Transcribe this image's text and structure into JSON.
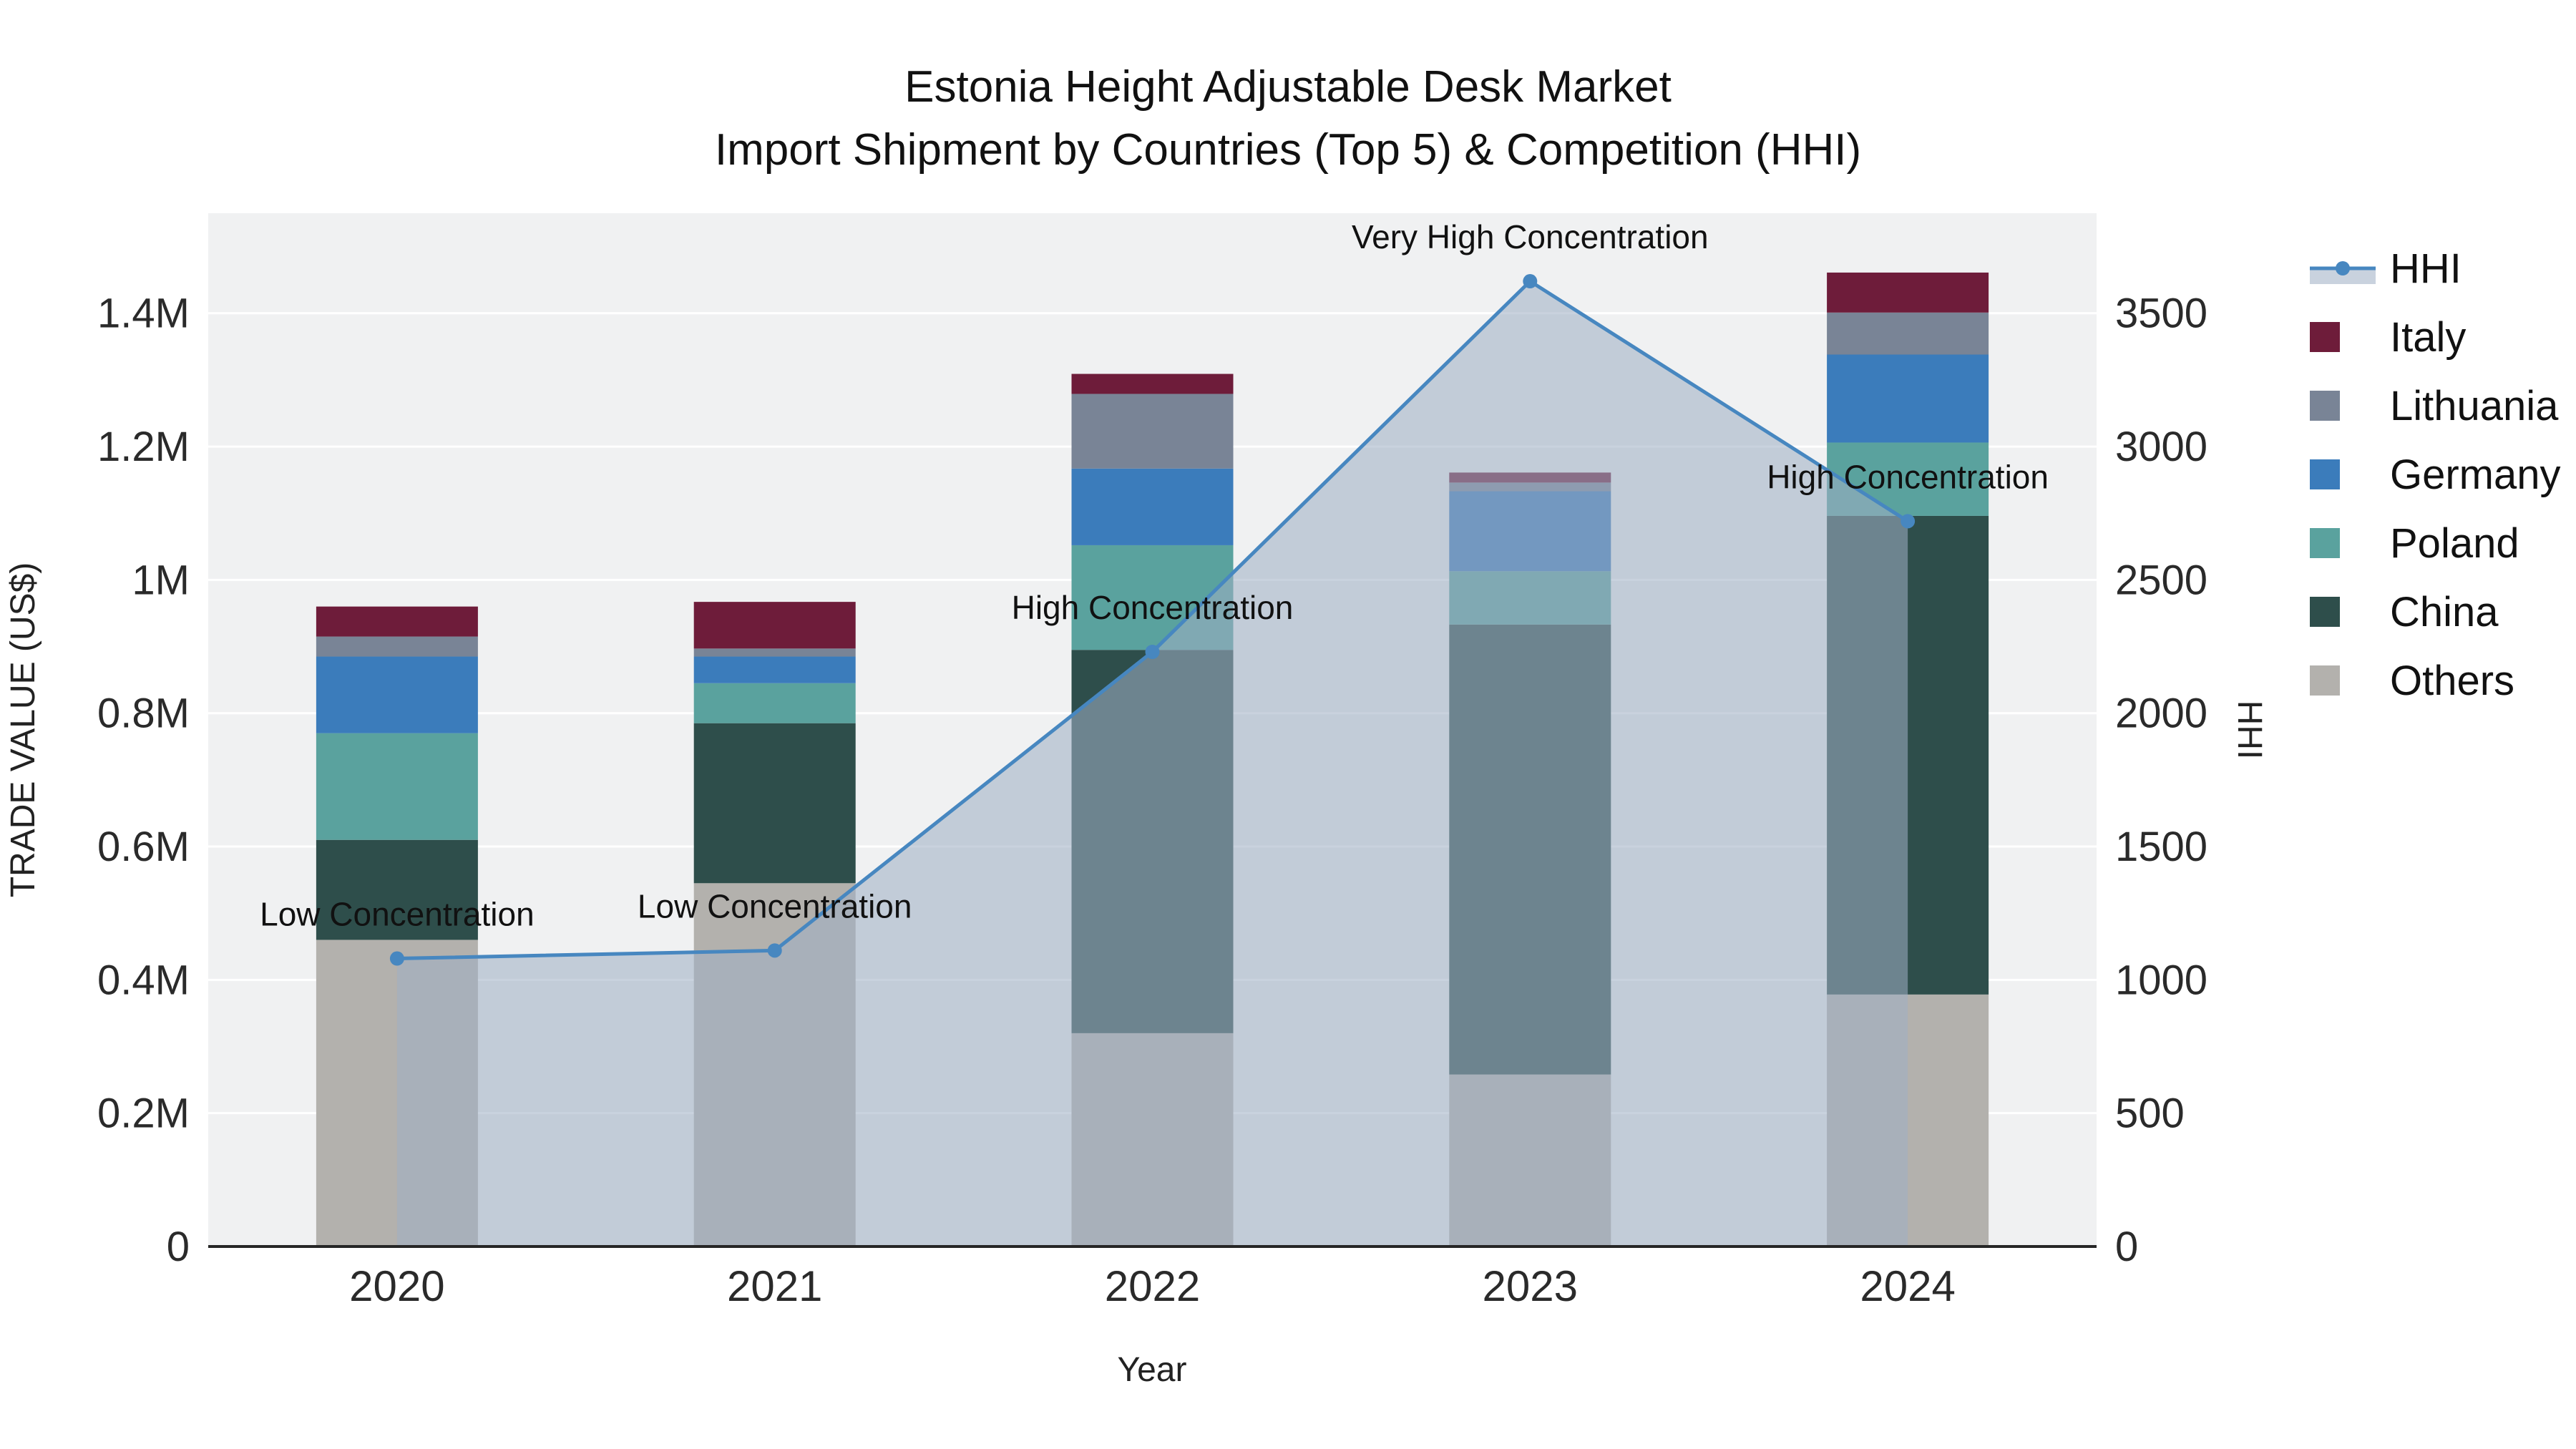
{
  "title": {
    "line1": "Estonia Height Adjustable Desk Market",
    "line2": "Import Shipment by Countries (Top 5) & Competition (HHI)"
  },
  "chart_data": {
    "type": "combo-stacked-bar-line",
    "categories": [
      "2020",
      "2021",
      "2022",
      "2023",
      "2024"
    ],
    "xlabel": "Year",
    "y_left": {
      "label": "TRADE VALUE (US$)",
      "max": 1550000,
      "ticks": [
        {
          "v": 0,
          "t": "0"
        },
        {
          "v": 200000,
          "t": "0.2M"
        },
        {
          "v": 400000,
          "t": "0.4M"
        },
        {
          "v": 600000,
          "t": "0.6M"
        },
        {
          "v": 800000,
          "t": "0.8M"
        },
        {
          "v": 1000000,
          "t": "1M"
        },
        {
          "v": 1200000,
          "t": "1.2M"
        },
        {
          "v": 1400000,
          "t": "1.4M"
        }
      ]
    },
    "y_right": {
      "label": "HHI",
      "max": 3875,
      "ticks": [
        {
          "v": 0,
          "t": "0"
        },
        {
          "v": 500,
          "t": "500"
        },
        {
          "v": 1000,
          "t": "1000"
        },
        {
          "v": 1500,
          "t": "1500"
        },
        {
          "v": 2000,
          "t": "2000"
        },
        {
          "v": 2500,
          "t": "2500"
        },
        {
          "v": 3000,
          "t": "3000"
        },
        {
          "v": 3500,
          "t": "3500"
        }
      ]
    },
    "bar_series": [
      {
        "name": "Others",
        "color": "#b3b1ad",
        "values": [
          460000,
          545000,
          320000,
          258000,
          378000
        ]
      },
      {
        "name": "China",
        "color": "#2e4e4b",
        "values": [
          150000,
          240000,
          575000,
          675000,
          718000
        ]
      },
      {
        "name": "Poland",
        "color": "#5aa29e",
        "values": [
          160000,
          60000,
          157000,
          80000,
          110000
        ]
      },
      {
        "name": "Germany",
        "color": "#3b7cbb",
        "values": [
          115000,
          40000,
          115000,
          120000,
          132000
        ]
      },
      {
        "name": "Lithuania",
        "color": "#798496",
        "values": [
          30000,
          12000,
          112000,
          13000,
          63000
        ]
      },
      {
        "name": "Italy",
        "color": "#6e1c3a",
        "values": [
          45000,
          70000,
          30000,
          15000,
          60000
        ]
      }
    ],
    "line_series": {
      "name": "HHI",
      "color": "#4787c0",
      "fill_color": "rgba(158,174,197,0.56)",
      "values": [
        1080,
        1110,
        2230,
        3620,
        2720
      ]
    },
    "annotations": [
      {
        "index": 0,
        "text": "Low Concentration"
      },
      {
        "index": 1,
        "text": "Low Concentration"
      },
      {
        "index": 2,
        "text": "High Concentration"
      },
      {
        "index": 3,
        "text": "Very High Concentration"
      },
      {
        "index": 4,
        "text": "High Concentration"
      }
    ],
    "legend": {
      "items": [
        "HHI",
        "Italy",
        "Lithuania",
        "Germany",
        "Poland",
        "China",
        "Others"
      ]
    },
    "style": {
      "plot_bg": "#f0f1f2",
      "grid": "#ffffff",
      "axis_line": "#262626",
      "text": "#2a2a2a"
    }
  }
}
